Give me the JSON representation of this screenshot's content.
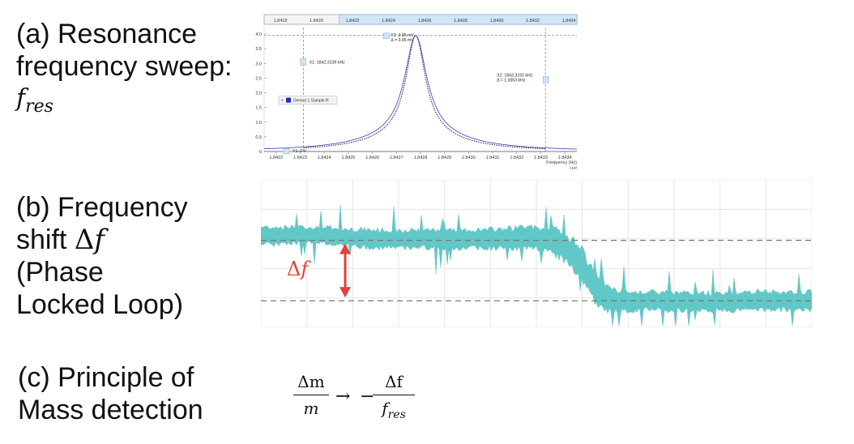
{
  "labels": {
    "a_line1": "(a) Resonance",
    "a_line2": "frequency sweep:",
    "a_math": "f",
    "a_math_sub": "res",
    "b_line1": "(b) Frequency",
    "b_line2": "shift ",
    "b_delta": "Δ",
    "b_f": "f",
    "b_line3": "(Phase",
    "b_line4": "Locked Loop)",
    "c_line1": "(c) Principle of",
    "c_line2": "Mass detection"
  },
  "formula": {
    "num1": "Δm",
    "den1": "m",
    "arrow": "→",
    "minus": "−",
    "num2": "Δf",
    "den2": "f",
    "den2_sub": "res"
  },
  "chart_data": [
    {
      "type": "line",
      "top_axis_ticks": [
        "1.8418",
        "1.8420",
        "1.8422",
        "1.8424",
        "1.8426",
        "1.8428",
        "1.8430",
        "1.8432",
        "1.8434"
      ],
      "x_ticks": [
        "1.8422",
        "1.8423",
        "1.8424",
        "1.8425",
        "1.8426",
        "1.8427",
        "1.8428",
        "1.8429",
        "1.8430",
        "1.8431",
        "1.8432",
        "1.8433",
        "1.8434"
      ],
      "y_ticks": [
        "0",
        "0.5",
        "1.0",
        "1.5",
        "2.0",
        "2.5",
        "3.0",
        "3.5",
        "4.0"
      ],
      "xlabel": "Frequency (Hz)",
      "x_exponent": "×10³",
      "xlim": [
        1842.15,
        1843.45
      ],
      "ylim": [
        0,
        4.0
      ],
      "grid": false,
      "series": [
        {
          "name": "",
          "style": "solid",
          "color": "#3a3ab8",
          "center": 1842.78,
          "peak": 3.95,
          "halfwidth": 0.055
        },
        {
          "name": "",
          "style": "dotted",
          "color": "#1a1a5a",
          "center": 1842.78,
          "peak": 3.95,
          "halfwidth": 0.048
        }
      ],
      "cursors": {
        "x1": 1842.3139,
        "x2": 1843.3192,
        "y1": 0,
        "y2": 3.95
      },
      "annotations": {
        "y2_label": "Y2: 3.95 mV",
        "y2_delta": "Δ = 3.95 mV",
        "x1_label": "X1: 1842.3139 kHz",
        "x2_label": "X2: 1843.3192 kHz",
        "x2_delta": "Δ = 1.0053 kHz",
        "y1_label": "Y1: 0 V",
        "legend_label": "Demod 1 Sample R"
      },
      "colors": {
        "curve": "#3a3ab8",
        "cursor_box": "#cfe3f7",
        "top_bar_highlight": "#cfe6f8",
        "legend_box": "#1f2fb0"
      }
    },
    {
      "type": "area",
      "description_series": "frequency shift signal band",
      "x": [
        0,
        0.1,
        0.2,
        0.3,
        0.4,
        0.45,
        0.5,
        0.52,
        0.55,
        0.58,
        0.6,
        0.62,
        0.65,
        0.7,
        0.8,
        0.9,
        1.0
      ],
      "center": [
        0.62,
        0.63,
        0.6,
        0.6,
        0.6,
        0.6,
        0.61,
        0.6,
        0.55,
        0.45,
        0.3,
        0.2,
        0.18,
        0.18,
        0.17,
        0.18,
        0.18
      ],
      "halfband": [
        0.06,
        0.05,
        0.06,
        0.06,
        0.06,
        0.07,
        0.07,
        0.08,
        0.09,
        0.1,
        0.1,
        0.08,
        0.07,
        0.06,
        0.06,
        0.06,
        0.06
      ],
      "ylim": [
        0,
        1
      ],
      "reference_lines": [
        0.59,
        0.18
      ],
      "grid": true,
      "delta_label_math": "Δ",
      "delta_label_f": "f",
      "colors": {
        "band": "#62c7c7",
        "arrow": "#e0413a",
        "grid": "#e6e6e6",
        "dash": "#777777"
      }
    }
  ]
}
